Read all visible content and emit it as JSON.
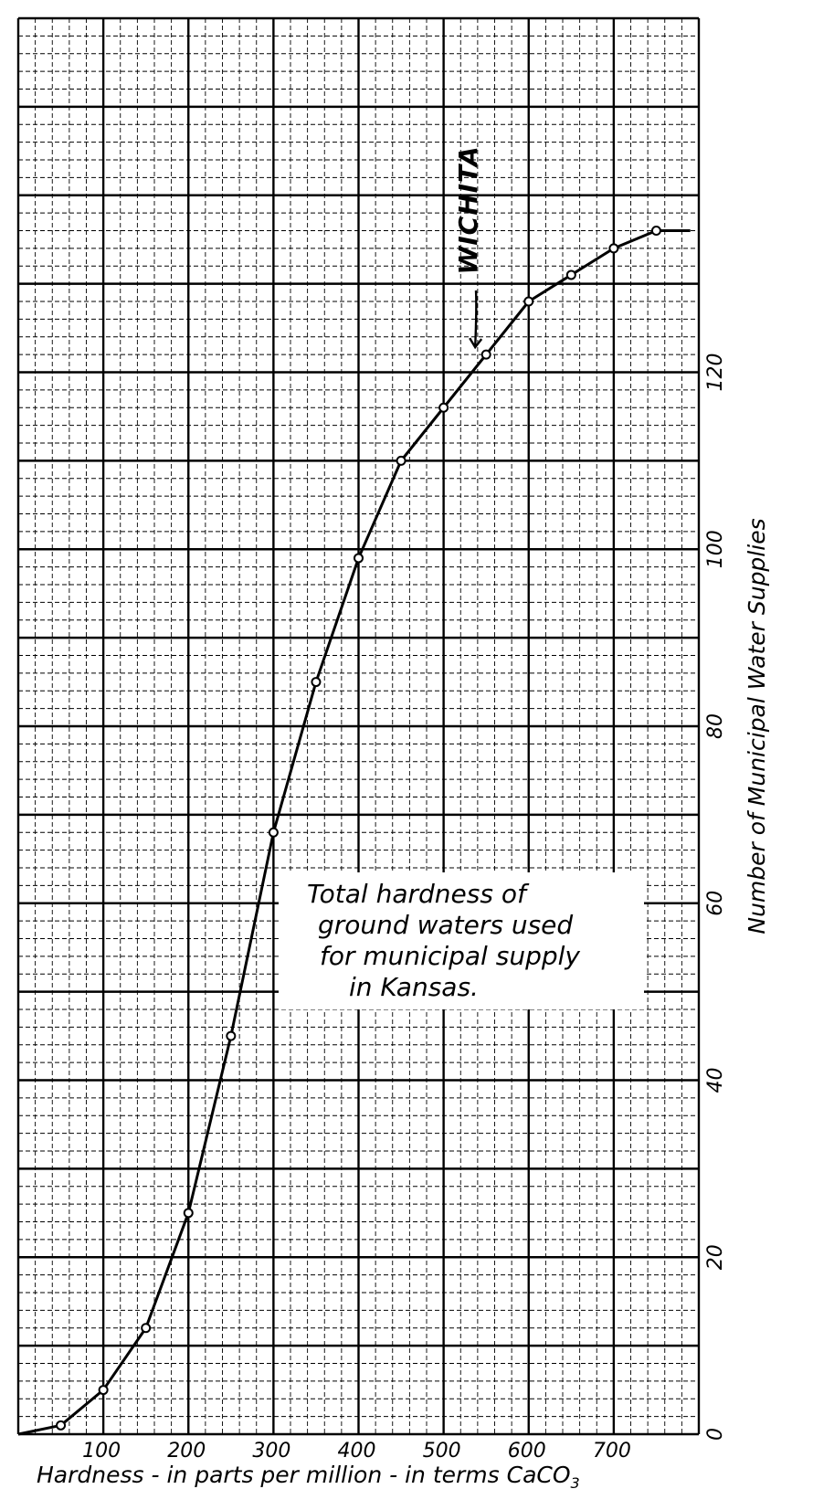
{
  "chart_data": {
    "type": "line",
    "title": "Total hardness of ground waters used for municipal supply in Kansas.",
    "title_lines": [
      "Total hardness of",
      "ground waters used",
      "for municipal supply",
      "in Kansas."
    ],
    "xlabel_main": "Hardness - in parts per million - in terms CaCO",
    "xlabel_sub": "3",
    "ylabel": "Number of Municipal Water Supplies",
    "xlim": [
      0,
      800
    ],
    "ylim": [
      0,
      160
    ],
    "x_ticks": [
      "100",
      "200",
      "300",
      "400",
      "500",
      "600",
      "700"
    ],
    "y_ticks": [
      "0",
      "20",
      "40",
      "60",
      "80",
      "100",
      "120"
    ],
    "grid": true,
    "series": [
      {
        "x": [
          0,
          50,
          100,
          150,
          200,
          250,
          300,
          350,
          400,
          450,
          500,
          550,
          600,
          650,
          700,
          750,
          790
        ],
        "y": [
          0,
          1,
          5,
          12,
          25,
          45,
          68,
          85,
          99,
          110,
          116,
          122,
          128,
          131,
          134,
          136,
          136
        ],
        "markers": [
          false,
          true,
          true,
          true,
          true,
          true,
          true,
          true,
          true,
          true,
          true,
          true,
          true,
          true,
          true,
          true,
          false
        ]
      }
    ],
    "annotations": [
      {
        "text": "WICHITA",
        "x": 550,
        "y": 122
      }
    ]
  }
}
